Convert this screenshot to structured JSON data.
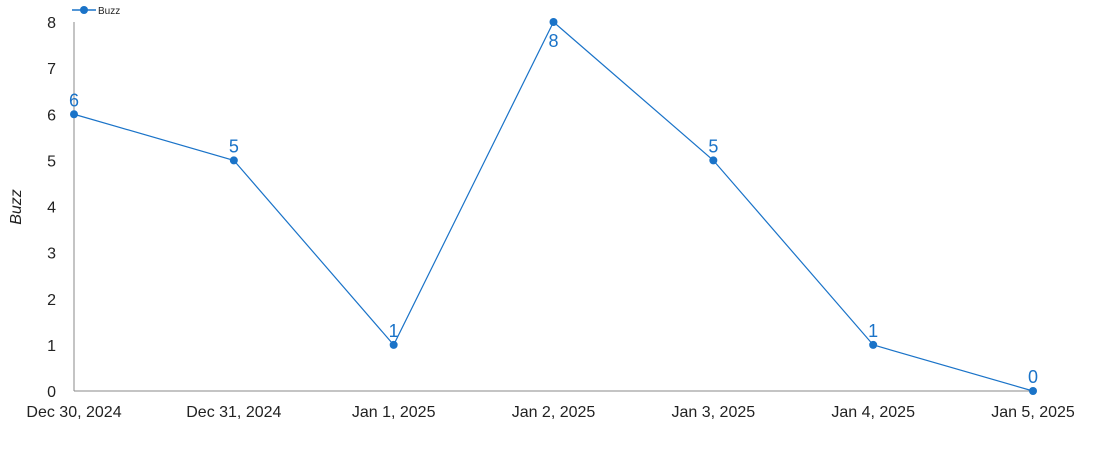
{
  "chart_data": {
    "type": "line",
    "x": [
      "Dec 30, 2024",
      "Dec 31, 2024",
      "Jan 1, 2025",
      "Jan 2, 2025",
      "Jan 3, 2025",
      "Jan 4, 2025",
      "Jan 5, 2025"
    ],
    "series": [
      {
        "name": "Buzz",
        "values": [
          6,
          5,
          1,
          8,
          5,
          1,
          0
        ],
        "color": "#1a73c8"
      }
    ],
    "ylabel": "Buzz",
    "xlabel": "",
    "ylim": [
      0,
      8
    ],
    "yticks": [
      0,
      1,
      2,
      3,
      4,
      5,
      6,
      7,
      8
    ],
    "legend_position": "top-left",
    "grid": false,
    "data_labels": true
  }
}
